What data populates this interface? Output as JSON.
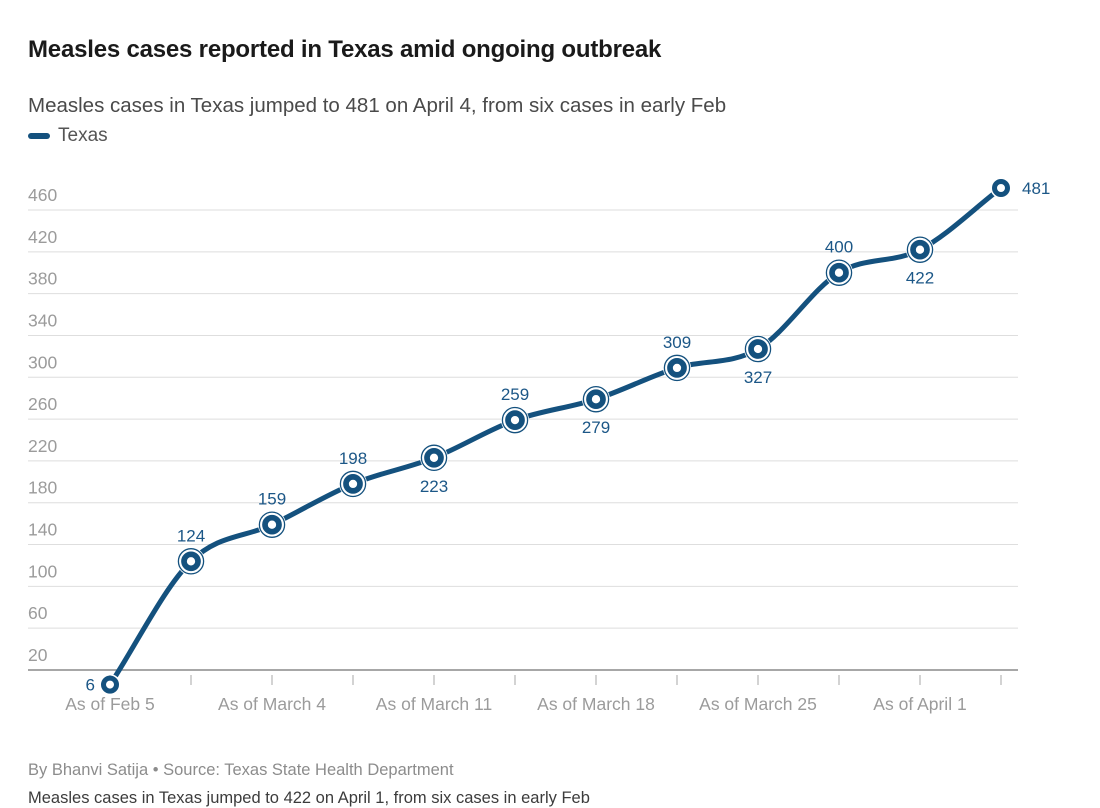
{
  "chart_data": {
    "type": "line",
    "title": "Measles cases reported in Texas amid ongoing outbreak",
    "subtitle": "Measles cases in Texas jumped to 481 on April 4, from six cases in early Feb",
    "series": [
      {
        "name": "Texas",
        "values": [
          6,
          124,
          159,
          198,
          223,
          259,
          279,
          309,
          327,
          400,
          422,
          481
        ],
        "value_label_positions": [
          "left",
          "above",
          "above",
          "above",
          "below",
          "above",
          "below",
          "above",
          "below",
          "above",
          "below",
          "right"
        ]
      }
    ],
    "x_axis": {
      "tick_labels": [
        "As of Feb 5",
        "As of March 4",
        "As of March 11",
        "As of March 18",
        "As of March 25",
        "As of April 1"
      ],
      "label_at_point_index": [
        0,
        2,
        4,
        6,
        8,
        10
      ],
      "ticks_at_every_point": true
    },
    "y_axis": {
      "ticks": [
        20,
        60,
        100,
        140,
        180,
        220,
        260,
        300,
        340,
        380,
        420,
        460
      ],
      "range": [
        20,
        460
      ]
    },
    "grid": true,
    "legend_position": "top-left",
    "xlabel": "",
    "ylabel": ""
  },
  "footer": {
    "byline": "By Bhanvi Satija • Source: Texas State Health Department",
    "note": "Measles cases in Texas jumped to 422 on April 1, from six cases in early Feb"
  },
  "colors": {
    "line": "#14517e",
    "value_label": "#1c5787",
    "grid": "#dedede",
    "baseline": "#8a8a8a",
    "tick": "#c4c4c4",
    "axis_label": "#9b9b9b",
    "title": "#1a1a1a",
    "subtitle": "#4a4a4a",
    "legend_text": "#555555",
    "byline": "#8c8c8c",
    "note": "#3c3c3c"
  }
}
